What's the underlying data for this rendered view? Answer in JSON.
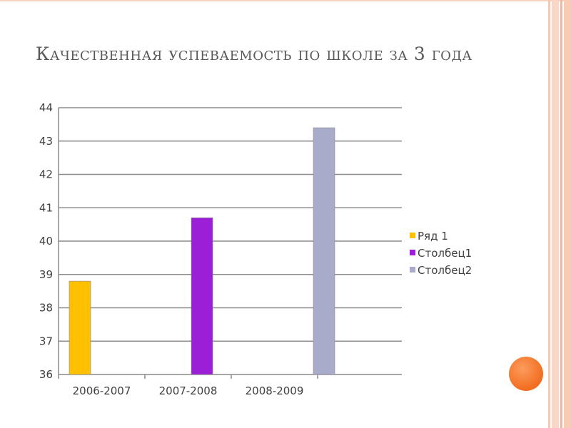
{
  "slide": {
    "title": "Качественная успеваемость по школе за 3 года"
  },
  "chart_data": {
    "type": "bar",
    "title": "",
    "xlabel": "",
    "ylabel": "",
    "categories": [
      "2006-2007",
      "2007-2008",
      "2008-2009"
    ],
    "series": [
      {
        "name": "Ряд 1",
        "color": "#FFC000",
        "values": [
          38.8,
          null,
          null
        ]
      },
      {
        "name": "Столбец1",
        "color": "#9B1FD6",
        "values": [
          null,
          40.7,
          null
        ]
      },
      {
        "name": "Столбец2",
        "color": "#A9ABCB",
        "values": [
          null,
          null,
          43.4
        ]
      }
    ],
    "ylim": [
      36,
      44
    ],
    "yticks": [
      36,
      37,
      38,
      39,
      40,
      41,
      42,
      43,
      44
    ],
    "grid": true,
    "legend_position": "right"
  },
  "colors": {
    "accent_orange": "#F26D1F",
    "decor_stripes": "#F7CBB6"
  }
}
